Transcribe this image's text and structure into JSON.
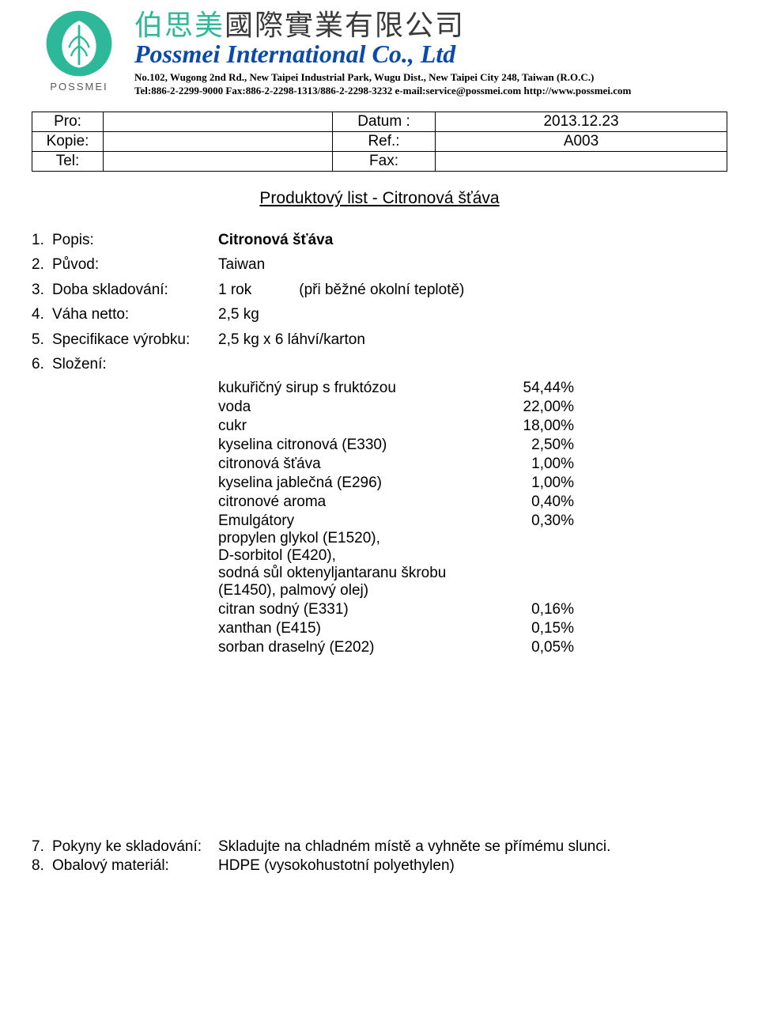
{
  "header": {
    "logo_label": "POSSMEI",
    "logo_colors": {
      "ring": "#2eb89a",
      "leaf": "#ffffff"
    },
    "cn_accent": "伯思美",
    "cn_rest": "國際實業有限公司",
    "en_name": "Possmei International Co., Ltd",
    "address": "No.102, Wugong 2nd Rd., New Taipei Industrial Park, Wugu Dist., New Taipei City 248, Taiwan (R.O.C.)",
    "contact": "Tel:886-2-2299-9000  Fax:886-2-2298-1313/886-2-2298-3232  e-mail:service@possmei.com  http://www.possmei.com"
  },
  "meta": {
    "pro_label": "Pro:",
    "pro_value": "",
    "kopie_label": "Kopie:",
    "kopie_value": "",
    "tel_label": "Tel:",
    "tel_value": "",
    "datum_label": "Datum :",
    "datum_value": "2013.12.23",
    "ref_label": "Ref.:",
    "ref_value": "A003",
    "fax_label": "Fax:",
    "fax_value": ""
  },
  "title": "Produktový list - Citronová šťáva",
  "fields": [
    {
      "num": "1.",
      "label": "Popis:",
      "value": "Citronová šťáva",
      "bold": true
    },
    {
      "num": "2.",
      "label": "Původ:",
      "value": "Taiwan"
    },
    {
      "num": "3.",
      "label": "Doba skladování:",
      "value": "1 rok",
      "note": "(při běžné okolní teplotě)"
    },
    {
      "num": "4.",
      "label": "Váha netto:",
      "value": "2,5 kg"
    },
    {
      "num": "5.",
      "label": "Specifikace výrobku:",
      "value": "2,5 kg x 6 láhví/karton"
    },
    {
      "num": "6.",
      "label": "Složení:",
      "value": ""
    }
  ],
  "ingredients": [
    {
      "name": "kukuřičný sirup s fruktózou",
      "pct": "54,44%"
    },
    {
      "name": "voda",
      "pct": "22,00%"
    },
    {
      "name": "cukr",
      "pct": "18,00%"
    },
    {
      "name": "kyselina citronová (E330)",
      "pct": "2,50%"
    },
    {
      "name": "citronová šťáva",
      "pct": "1,00%"
    },
    {
      "name": "kyselina jablečná (E296)",
      "pct": "1,00%"
    },
    {
      "name": "citronové aroma",
      "pct": "0,40%"
    },
    {
      "name": "Emulgátory\npropylen glykol (E1520),\nD-sorbitol (E420),\nsodná sůl oktenyljantaranu škrobu\n(E1450), palmový olej)",
      "pct": "0,30%"
    },
    {
      "name": "citran sodný (E331)",
      "pct": "0,16%"
    },
    {
      "name": "xanthan (E415)",
      "pct": "0,15%"
    },
    {
      "name": "sorban draselný (E202)",
      "pct": "0,05%"
    }
  ],
  "bottom": [
    {
      "num": "7.",
      "label": "Pokyny ke skladování:",
      "value": "Skladujte na chladném místě a vyhněte se přímému slunci."
    },
    {
      "num": "8.",
      "label": "Obalový materiál:",
      "value": "HDPE (vysokohustotní polyethylen)"
    }
  ]
}
